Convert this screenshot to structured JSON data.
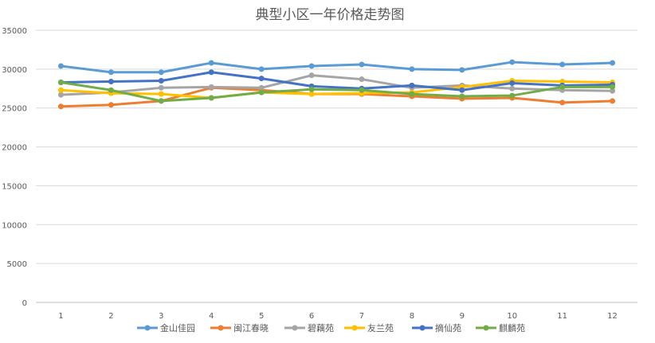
{
  "chart_data": {
    "type": "line",
    "title": "典型小区一年价格走势图",
    "xlabel": "",
    "ylabel": "",
    "categories": [
      "1",
      "2",
      "3",
      "4",
      "5",
      "6",
      "7",
      "8",
      "9",
      "10",
      "11",
      "12"
    ],
    "ylim": [
      0,
      35000
    ],
    "yticks": [
      "0",
      "5000",
      "10000",
      "15000",
      "20000",
      "25000",
      "30000",
      "35000"
    ],
    "grid": true,
    "legend_position": "bottom",
    "series": [
      {
        "name": "金山佳园",
        "color": "#5B9BD5",
        "values": [
          30400,
          29600,
          29600,
          30800,
          30000,
          30400,
          30600,
          30000,
          29900,
          30900,
          30600,
          30800
        ]
      },
      {
        "name": "闽江春晓",
        "color": "#ED7D31",
        "values": [
          25200,
          25400,
          25900,
          27600,
          27300,
          26800,
          26800,
          26500,
          26200,
          26300,
          25700,
          25900
        ]
      },
      {
        "name": "碧藕苑",
        "color": "#A5A5A5",
        "values": [
          26700,
          27000,
          27600,
          27700,
          27600,
          29200,
          28700,
          27600,
          27900,
          27500,
          27300,
          27200
        ]
      },
      {
        "name": "友兰苑",
        "color": "#FFC000",
        "values": [
          27300,
          26900,
          26800,
          26300,
          27000,
          26800,
          26900,
          27000,
          27700,
          28500,
          28400,
          28300
        ]
      },
      {
        "name": "摘仙苑",
        "color": "#4472C4",
        "values": [
          28300,
          28400,
          28500,
          29600,
          28800,
          27800,
          27500,
          27900,
          27300,
          28200,
          27900,
          28000
        ]
      },
      {
        "name": "麒麟苑",
        "color": "#70AD47",
        "values": [
          28300,
          27300,
          25900,
          26300,
          27000,
          27400,
          27300,
          26800,
          26500,
          26600,
          27700,
          27700
        ]
      }
    ]
  }
}
